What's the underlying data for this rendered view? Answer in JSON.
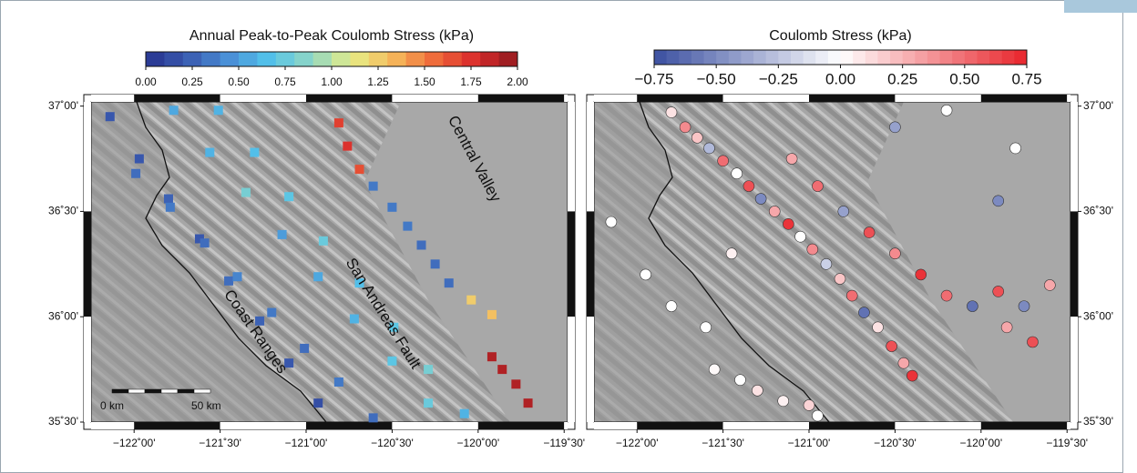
{
  "panels": [
    {
      "colorbar": {
        "title": "Annual Peak-to-Peak Coulomb Stress (kPa)",
        "lim": [
          0,
          2
        ],
        "ticks": [
          {
            "value": 0,
            "label": "0.00"
          },
          0.25,
          {
            "value": 0.5,
            "label": "0.50"
          },
          0.75,
          {
            "value": 1,
            "label": "1.00"
          },
          1.25,
          {
            "value": 1.5,
            "label": "1.50"
          },
          1.75,
          {
            "value": 2,
            "label": "2.00"
          }
        ],
        "colormap": [
          "#27338f",
          "#3a5bb0",
          "#4a8fd6",
          "#53c3ea",
          "#8fd6c4",
          "#e6ec86",
          "#f6b85a",
          "#ef6a3a",
          "#d92a2b",
          "#8f1a1f"
        ]
      },
      "xlim": [
        -122.25,
        -119.48
      ],
      "ylim": [
        35.5,
        37.02
      ],
      "xticks": [
        {
          "value": -122,
          "label": "−122˚00'"
        },
        {
          "value": -121.5,
          "label": "−121˚30'"
        },
        {
          "value": -121,
          "label": "−121˚00'"
        },
        {
          "value": -120.5,
          "label": "−120˚30'"
        },
        {
          "value": -120,
          "label": "−120˚00'"
        },
        {
          "value": -119.5,
          "label": "−119˚30'"
        }
      ],
      "yticks": [
        {
          "value": 37,
          "label": "37˚00'"
        },
        {
          "value": 36.5,
          "label": "36˚30'"
        },
        {
          "value": 36,
          "label": "36˚00'"
        },
        {
          "value": 35.5,
          "label": "35˚30'"
        }
      ],
      "labels": [
        "Central Valley",
        "San Andreas Fault",
        "Coast Ranges"
      ],
      "scalebar": [
        "0 km",
        "50 km"
      ],
      "markers": {
        "lon": [
          -122.14,
          -121.97,
          -121.8,
          -121.62,
          -121.45,
          -121.27,
          -121.1,
          -120.93,
          -121.99,
          -121.79,
          -121.59,
          -121.4,
          -121.2,
          -121.01,
          -120.81,
          -120.61,
          -121.77,
          -121.56,
          -121.35,
          -121.14,
          -120.93,
          -120.72,
          -120.5,
          -120.29,
          -121.51,
          -121.3,
          -121.1,
          -120.9,
          -120.69,
          -120.49,
          -120.29,
          -120.08,
          -120.81,
          -120.76,
          -120.69,
          -120.61,
          -120.5,
          -120.41,
          -120.33,
          -120.25,
          -120.17,
          -120.04,
          -119.92,
          -119.92,
          -119.86,
          -119.78,
          -119.71
        ],
        "lat": [
          36.95,
          36.75,
          36.56,
          36.37,
          36.17,
          35.98,
          35.78,
          35.59,
          36.68,
          36.52,
          36.35,
          36.19,
          36.02,
          35.85,
          35.69,
          35.52,
          36.98,
          36.78,
          36.59,
          36.39,
          36.19,
          35.99,
          35.79,
          35.59,
          36.98,
          36.78,
          36.57,
          36.36,
          36.16,
          35.95,
          35.75,
          35.54,
          36.92,
          36.81,
          36.7,
          36.62,
          36.52,
          36.43,
          36.34,
          36.25,
          36.16,
          36.08,
          36.01,
          35.81,
          35.75,
          35.68,
          35.59
        ],
        "values": [
          0.2,
          0.2,
          0.25,
          0.2,
          0.3,
          0.25,
          0.2,
          0.15,
          0.3,
          0.35,
          0.3,
          0.4,
          0.35,
          0.3,
          0.35,
          0.3,
          0.55,
          0.6,
          0.8,
          0.5,
          0.55,
          0.6,
          0.7,
          0.75,
          0.6,
          0.65,
          0.7,
          0.75,
          0.65,
          0.7,
          0.8,
          0.6,
          1.7,
          1.75,
          1.65,
          0.35,
          0.35,
          0.35,
          0.3,
          0.3,
          0.3,
          1.25,
          1.3,
          1.9,
          1.9,
          1.9,
          1.9
        ]
      }
    },
    {
      "colorbar": {
        "title": "Coulomb Stress (kPa)",
        "lim": [
          -0.75,
          0.75
        ],
        "ticks": [
          {
            "value": -0.75,
            "label": "−0.75"
          },
          {
            "value": -0.5,
            "label": "−0.50"
          },
          {
            "value": -0.25,
            "label": "−0.25"
          },
          {
            "value": 0,
            "label": "0.00"
          },
          0.25,
          {
            "value": 0.5,
            "label": "0.50"
          },
          0.75
        ],
        "colormap": [
          "#3a4fa0",
          "#ffffff",
          "#e8242b"
        ]
      },
      "xlim": [
        -122.25,
        -119.48
      ],
      "ylim": [
        35.5,
        37.02
      ],
      "xticks": [
        {
          "value": -122,
          "label": "−122˚00'"
        },
        {
          "value": -121.5,
          "label": "−121˚30'"
        },
        {
          "value": -121,
          "label": "−121˚00'"
        },
        {
          "value": -120.5,
          "label": "−120˚30'"
        },
        {
          "value": -120,
          "label": "−120˚00'"
        },
        {
          "value": -119.5,
          "label": "−119˚30'"
        }
      ],
      "yticks": [
        {
          "value": 37,
          "label": "37˚00'"
        },
        {
          "value": 36.5,
          "label": "36˚30'"
        },
        {
          "value": 36,
          "label": "36˚00'"
        },
        {
          "value": 35.5,
          "label": "35˚30'"
        }
      ],
      "markers": {
        "lon": [
          -121.8,
          -121.72,
          -121.65,
          -121.58,
          -121.5,
          -121.42,
          -121.35,
          -121.28,
          -121.2,
          -121.12,
          -121.05,
          -120.98,
          -120.9,
          -120.82,
          -120.75,
          -120.68,
          -120.6,
          -120.52,
          -120.45,
          -120.4,
          -121.1,
          -120.95,
          -120.8,
          -120.65,
          -120.5,
          -120.35,
          -120.2,
          -120.05,
          -119.9,
          -119.85,
          -119.75,
          -119.7,
          -122.15,
          -121.95,
          -121.8,
          -121.6,
          -121.55,
          -121.4,
          -121.3,
          -121.15,
          -121.0,
          -120.95,
          -121.45,
          -120.5,
          -120.2,
          -119.9,
          -119.8,
          -119.6
        ],
        "lat": [
          36.97,
          36.9,
          36.85,
          36.8,
          36.74,
          36.68,
          36.62,
          36.56,
          36.5,
          36.44,
          36.38,
          36.32,
          36.25,
          36.18,
          36.1,
          36.02,
          35.95,
          35.86,
          35.78,
          35.72,
          36.75,
          36.62,
          36.5,
          36.4,
          36.3,
          36.2,
          36.1,
          36.05,
          36.12,
          35.95,
          36.05,
          35.88,
          36.45,
          36.2,
          36.05,
          35.95,
          35.75,
          35.7,
          35.65,
          35.6,
          35.58,
          35.53,
          36.3,
          36.9,
          36.98,
          36.55,
          36.8,
          36.15
        ],
        "values": [
          0.1,
          0.4,
          0.2,
          -0.3,
          0.5,
          0,
          0.6,
          -0.5,
          0.3,
          0.7,
          0,
          0.4,
          -0.2,
          0.2,
          0.5,
          -0.6,
          0.1,
          0.6,
          0.3,
          0.7,
          0.3,
          0.5,
          -0.4,
          0.6,
          0.4,
          0.7,
          0.5,
          -0.6,
          0.6,
          0.3,
          -0.5,
          0.6,
          0,
          0,
          0,
          0,
          0.02,
          0,
          0.1,
          0.05,
          0.15,
          0,
          0.05,
          -0.4,
          0,
          -0.5,
          0,
          0.3
        ]
      }
    }
  ]
}
